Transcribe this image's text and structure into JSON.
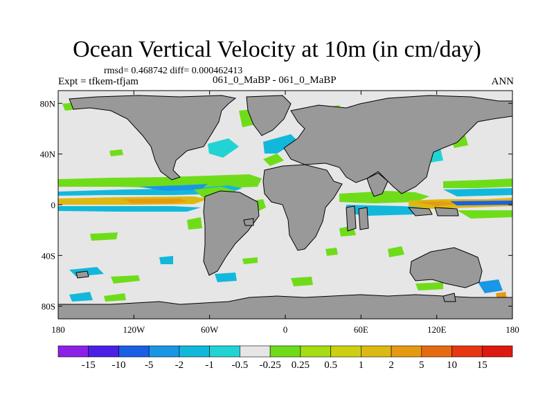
{
  "title": "Ocean Vertical Velocity at 10m (in cm/day)",
  "stats_line": "rmsd= 0.468742 diff= 0.000462413",
  "experiment": "Expt = tfkem-tfjam",
  "case_label": "061_0_MaBP - 061_0_MaBP",
  "season": "ANN",
  "y_ticks": [
    {
      "label": "80N",
      "lat": 80
    },
    {
      "label": "40N",
      "lat": 40
    },
    {
      "label": "0",
      "lat": 0
    },
    {
      "label": "40S",
      "lat": -40
    },
    {
      "label": "80S",
      "lat": -80
    }
  ],
  "x_ticks": [
    {
      "label": "180",
      "lon": -180
    },
    {
      "label": "120W",
      "lon": -120
    },
    {
      "label": "60W",
      "lon": -60
    },
    {
      "label": "0",
      "lon": 0
    },
    {
      "label": "60E",
      "lon": 60
    },
    {
      "label": "120E",
      "lon": 120
    },
    {
      "label": "180",
      "lon": 180
    }
  ],
  "colorbar": {
    "colors": [
      "#8d20e6",
      "#4b20e6",
      "#1a5fe6",
      "#1a96e6",
      "#12b8dc",
      "#22d3d3",
      "#e6e6e6",
      "#6fdc19",
      "#a6dc12",
      "#cdd012",
      "#dcb912",
      "#e69a12",
      "#e66a12",
      "#e63712",
      "#dc1a12"
    ],
    "labels": [
      "-15",
      "-10",
      "-5",
      "-2",
      "-1",
      "-0.5",
      "-0.25",
      "0.25",
      "0.5",
      "1",
      "2",
      "5",
      "10",
      "15"
    ]
  },
  "map": {
    "lon_range": [
      -180,
      180
    ],
    "lat_range": [
      -90,
      90
    ],
    "background_color": "#e6e6e6",
    "land_color": "#999999"
  }
}
